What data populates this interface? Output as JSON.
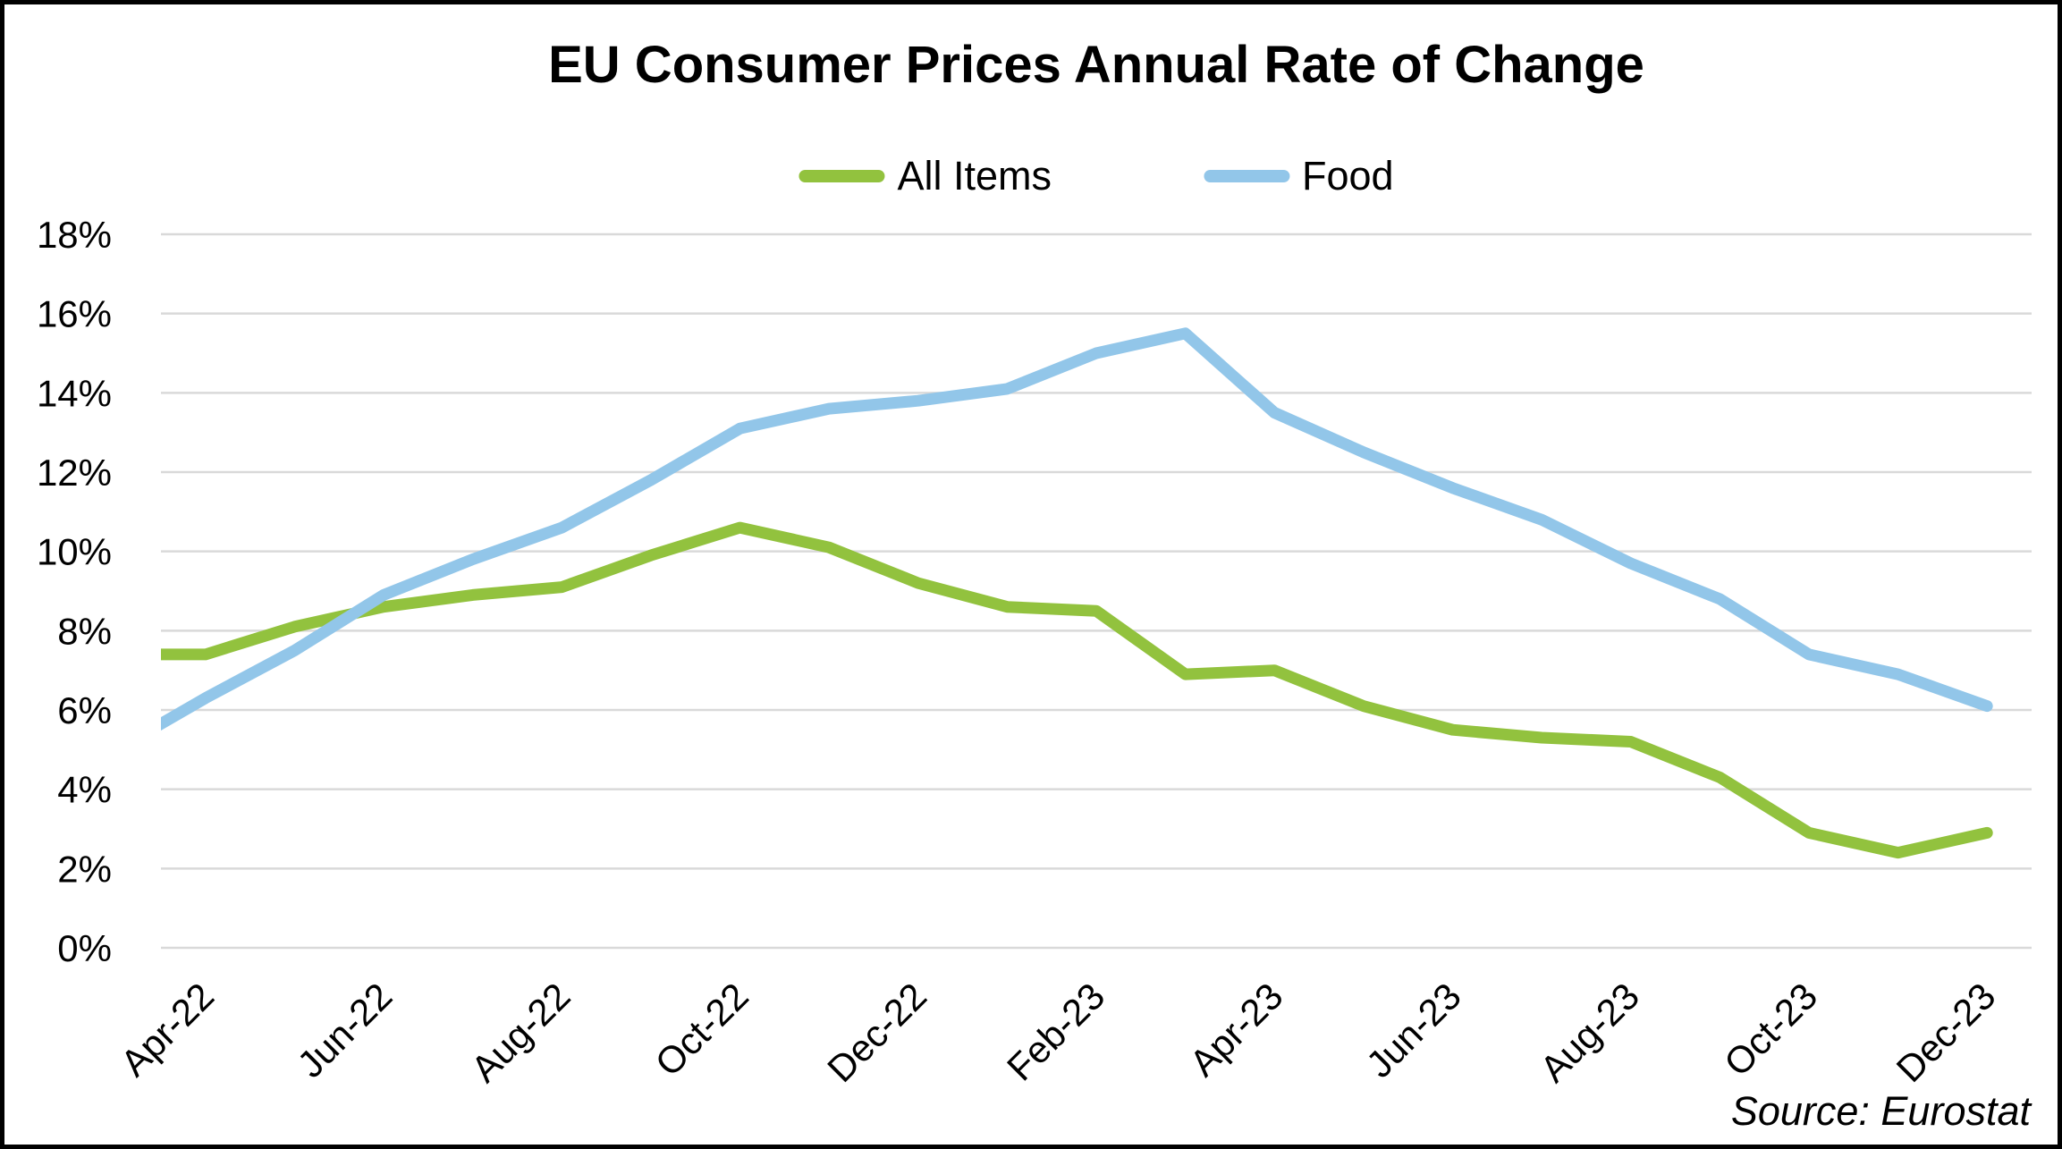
{
  "title": "EU Consumer Prices Annual Rate of Change",
  "source_note": "Source: Eurostat",
  "legend": {
    "items": [
      {
        "label": "All Items",
        "color": "#92C23E"
      },
      {
        "label": "Food",
        "color": "#92C6E9"
      }
    ]
  },
  "chart_data": {
    "type": "line",
    "title": "EU Consumer Prices Annual Rate of Change",
    "categories": [
      "Mar-22",
      "Apr-22",
      "May-22",
      "Jun-22",
      "Jul-22",
      "Aug-22",
      "Sep-22",
      "Oct-22",
      "Nov-22",
      "Dec-22",
      "Jan-23",
      "Feb-23",
      "Mar-23",
      "Apr-23",
      "May-23",
      "Jun-23",
      "Jul-23",
      "Aug-23",
      "Sep-23",
      "Oct-23",
      "Nov-23",
      "Dec-23"
    ],
    "x_tick_labels": [
      "Apr-22",
      "Jun-22",
      "Aug-22",
      "Oct-22",
      "Dec-22",
      "Feb-23",
      "Apr-23",
      "Jun-23",
      "Aug-23",
      "Oct-23",
      "Dec-23"
    ],
    "series": [
      {
        "name": "All Items",
        "color": "#92C23E",
        "values": [
          7.4,
          7.4,
          8.1,
          8.6,
          8.9,
          9.1,
          9.9,
          10.6,
          10.1,
          9.2,
          8.6,
          8.5,
          6.9,
          7.0,
          6.1,
          5.5,
          5.3,
          5.2,
          4.3,
          2.9,
          2.4,
          2.9
        ]
      },
      {
        "name": "Food",
        "color": "#92C6E9",
        "values": [
          5.0,
          6.3,
          7.5,
          8.9,
          9.8,
          10.6,
          11.8,
          13.1,
          13.6,
          13.8,
          14.1,
          15.0,
          15.5,
          13.5,
          12.5,
          11.6,
          10.8,
          9.7,
          8.8,
          7.4,
          6.9,
          6.1
        ]
      }
    ],
    "xlabel": "",
    "ylabel": "",
    "unit": "%",
    "ylim": [
      0,
      18
    ],
    "ytick_step": 2,
    "grid": true,
    "gridline_color": "#D9D9D9",
    "legend_position": "top-center",
    "x_tick_rotation": -45,
    "layout_note": "first category (Mar-22) lies just outside the left plot edge; its segments are clipped",
    "source": "Source: Eurostat"
  }
}
